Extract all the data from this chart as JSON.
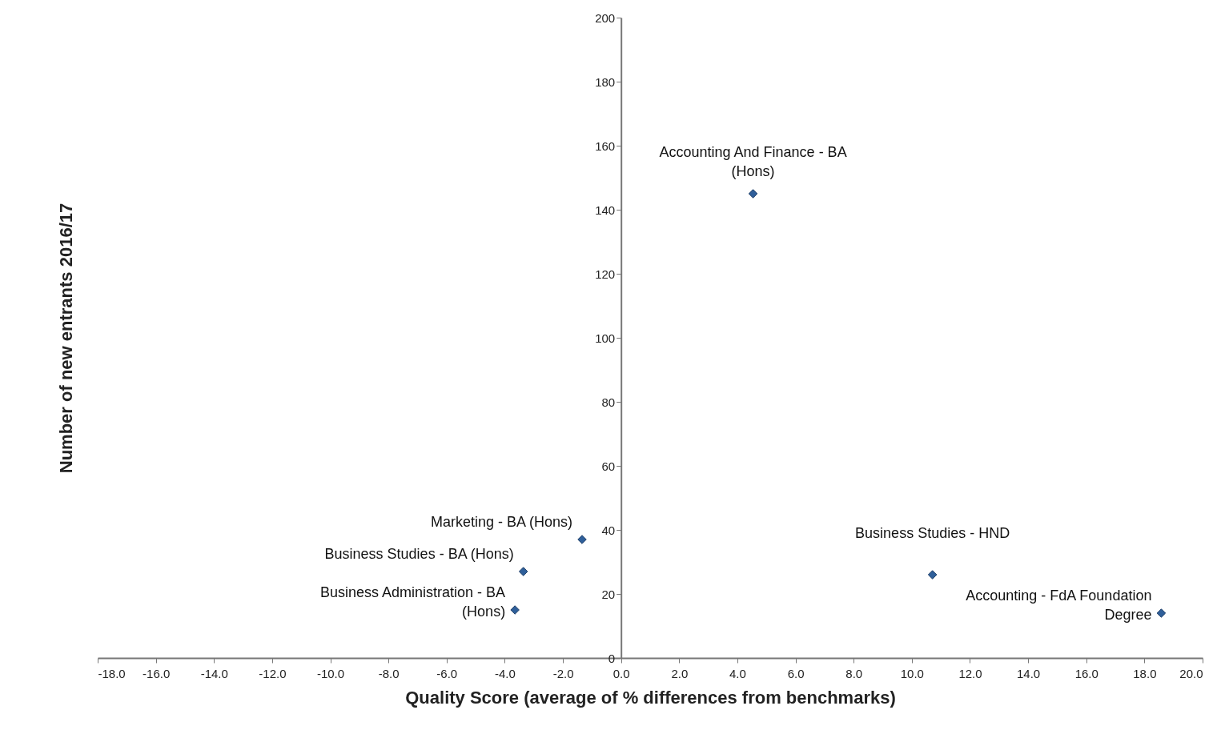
{
  "chart_data": {
    "type": "scatter",
    "xlabel": "Quality Score (average of % differences from benchmarks)",
    "ylabel": "Number of new entrants 2016/17",
    "series": [
      {
        "color": "#2f5f9a",
        "x": [
          4.54,
          -1.34,
          -3.36,
          -3.65,
          10.71,
          18.58
        ],
        "values": [
          145,
          37,
          27,
          15,
          26,
          14
        ]
      }
    ],
    "annotations": [
      {
        "text": "Accounting And Finance - BA (Hons)",
        "x": 4.54,
        "y": 145
      },
      {
        "text": "Marketing - BA (Hons)",
        "x": -1.34,
        "y": 37
      },
      {
        "text": "Business Studies - BA (Hons)",
        "x": -3.36,
        "y": 27
      },
      {
        "text": "Business Administration - BA (Hons)",
        "x": -3.65,
        "y": 15
      },
      {
        "text": "Business Studies - HND",
        "x": 10.71,
        "y": 26
      },
      {
        "text": "Accounting - FdA Foundation Degree",
        "x": 18.58,
        "y": 14
      }
    ],
    "xlim": [
      -18,
      20
    ],
    "xticks": [
      {
        "value": -18,
        "label": "-18.0"
      },
      {
        "value": -16,
        "label": "-16.0"
      },
      {
        "value": -14,
        "label": "-14.0"
      },
      {
        "value": -12,
        "label": "-12.0"
      },
      {
        "value": -10,
        "label": "-10.0"
      },
      {
        "value": -8,
        "label": "-8.0"
      },
      {
        "value": -6,
        "label": "-6.0"
      },
      {
        "value": -4,
        "label": "-4.0"
      },
      {
        "value": -2,
        "label": "-2.0"
      },
      {
        "value": 0,
        "label": "0.0"
      },
      {
        "value": 2,
        "label": "2.0"
      },
      {
        "value": 4,
        "label": "4.0"
      },
      {
        "value": 6,
        "label": "6.0"
      },
      {
        "value": 8,
        "label": "8.0"
      },
      {
        "value": 10,
        "label": "10.0"
      },
      {
        "value": 12,
        "label": "12.0"
      },
      {
        "value": 14,
        "label": "14.0"
      },
      {
        "value": 16,
        "label": "16.0"
      },
      {
        "value": 18,
        "label": "18.0"
      },
      {
        "value": 20,
        "label": "20.0"
      }
    ],
    "ylim": [
      0,
      200
    ],
    "yticks": [
      0,
      20,
      40,
      60,
      80,
      100,
      120,
      140,
      160,
      180,
      200
    ],
    "marker": "diamond",
    "grid": false
  }
}
